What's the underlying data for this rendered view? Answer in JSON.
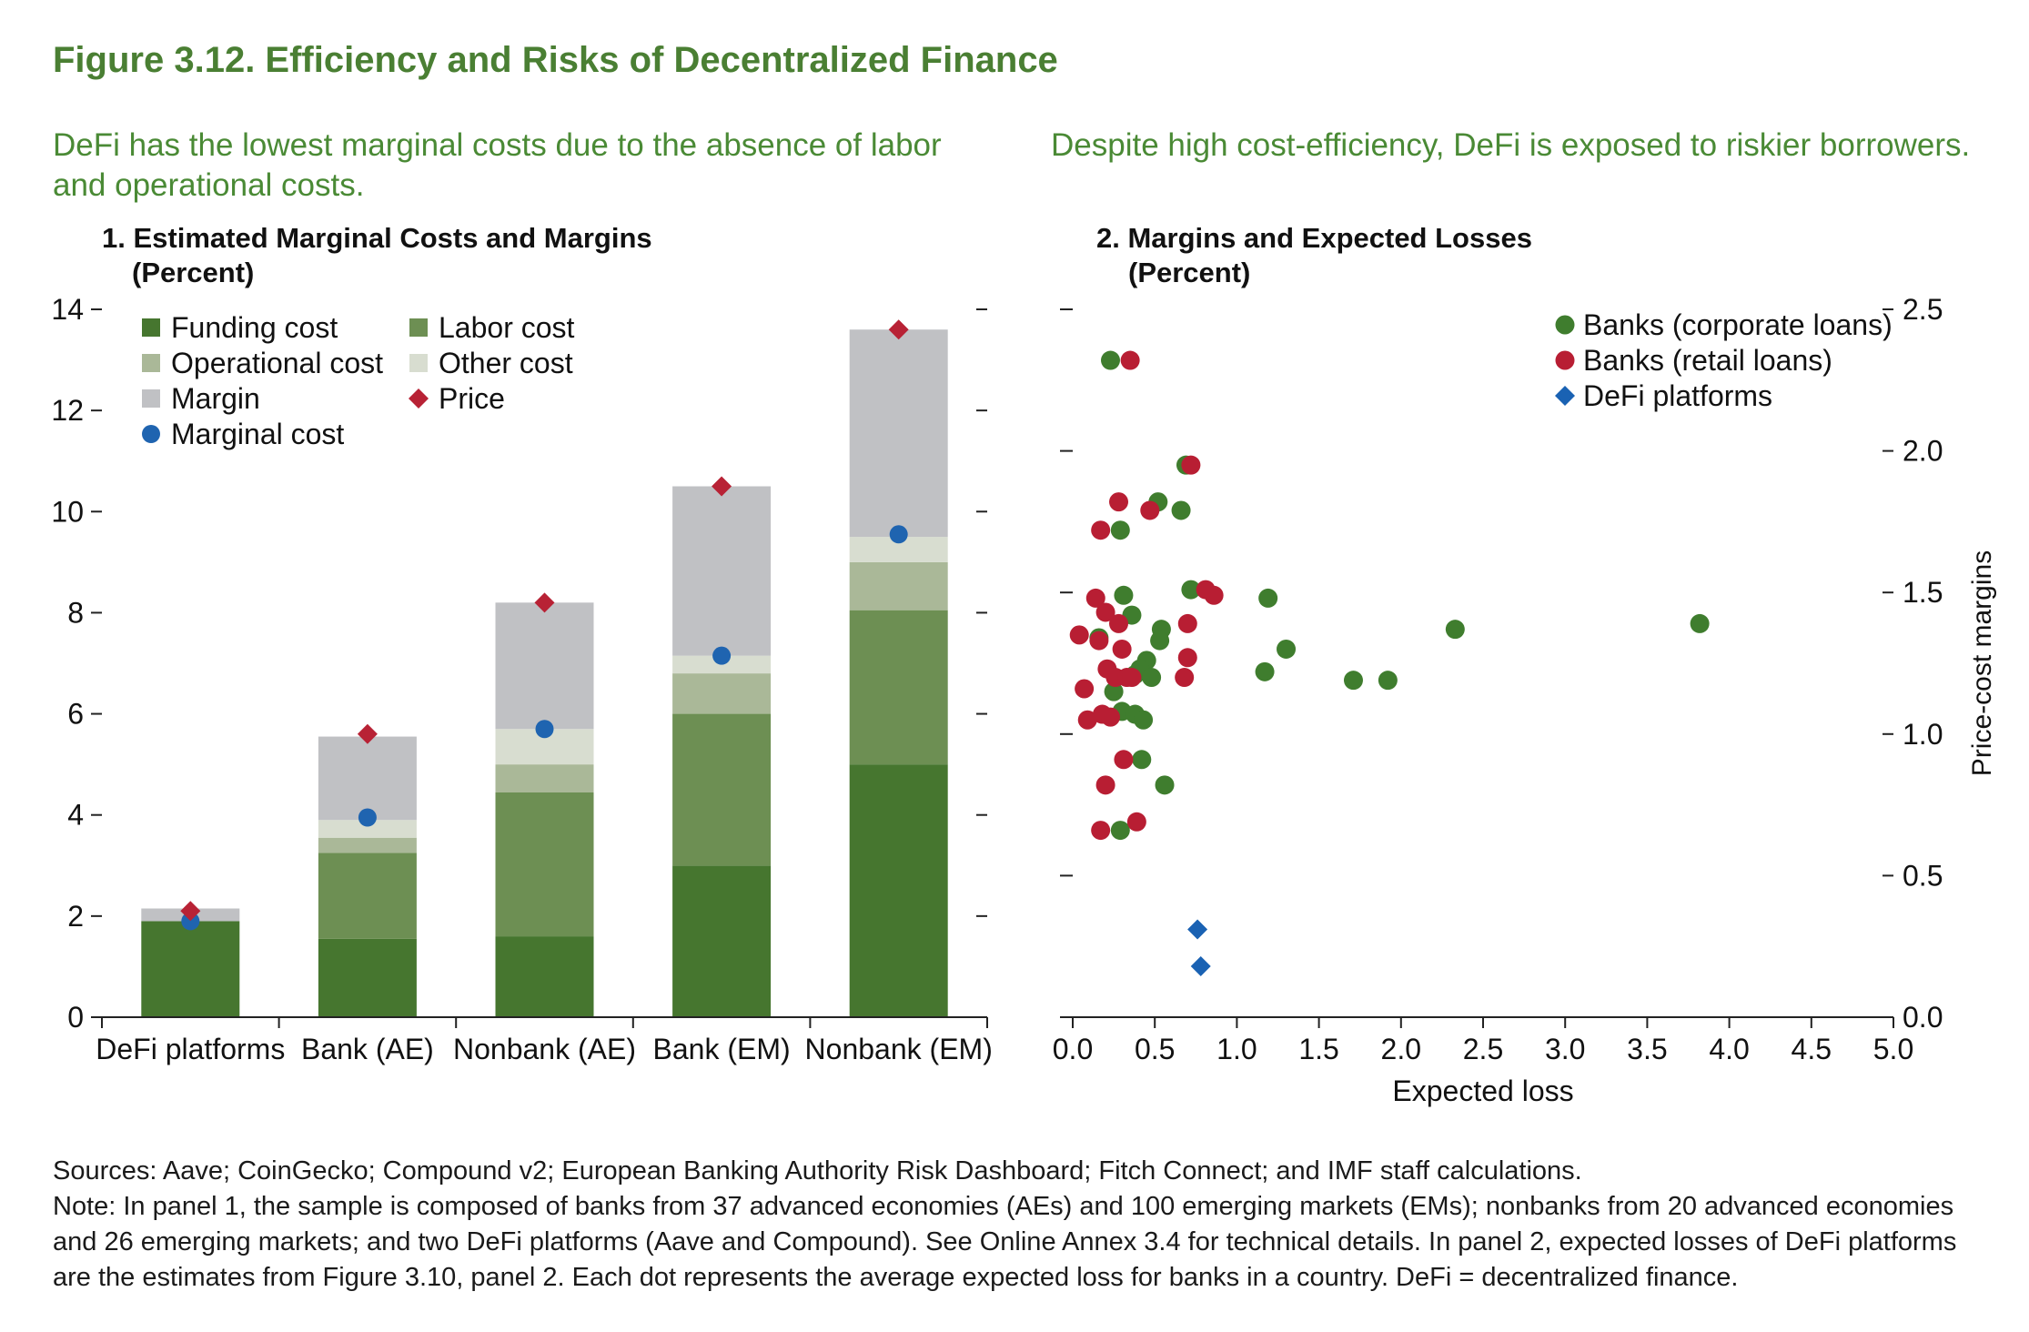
{
  "figure_title": "Figure 3.12. Efficiency and Risks of Decentralized Finance",
  "subtitles": {
    "left": "DeFi has the lowest marginal costs due to the absence of labor and operational costs.",
    "right": "Despite high cost-efficiency, DeFi is exposed to riskier borrowers."
  },
  "panels": {
    "p1_title": "1. Estimated Marginal Costs and Margins",
    "p1_unit": "(Percent)",
    "p2_title": "2. Margins and Expected Losses",
    "p2_unit": "(Percent)"
  },
  "footer": {
    "sources": "Sources: Aave; CoinGecko; Compound v2; European Banking Authority Risk Dashboard; Fitch Connect; and IMF staff calculations.",
    "note": "Note: In panel 1, the sample is composed of banks from 37 advanced economies (AEs) and 100 emerging markets (EMs); nonbanks from 20 advanced economies and 26 emerging markets; and two DeFi platforms (Aave and Compound). See Online Annex 3.4 for technical details. In panel 2, expected losses of DeFi platforms are the estimates from Figure 3.10, panel 2. Each dot represents the average expected loss for banks in a country. DeFi = decentralized finance."
  },
  "colors": {
    "funding": "#46762f",
    "labor": "#6d8f53",
    "operational": "#aab898",
    "other": "#d8ddd0",
    "margin": "#c0c1c4",
    "marginal_cost": "#1f64b0",
    "price": "#b82235",
    "banks_corporate": "#3f7d2e",
    "banks_retail": "#b81e33",
    "defi": "#1a62b3"
  },
  "chart_data": [
    {
      "type": "bar",
      "stacked": true,
      "title": "1. Estimated Marginal Costs and Margins",
      "unit": "(Percent)",
      "categories": [
        "DeFi platforms",
        "Bank (AE)",
        "Nonbank (AE)",
        "Bank (EM)",
        "Nonbank (EM)"
      ],
      "series": [
        {
          "name": "Funding cost",
          "values": [
            1.9,
            1.55,
            1.6,
            3.0,
            5.0
          ]
        },
        {
          "name": "Labor cost",
          "values": [
            0.0,
            1.7,
            2.85,
            3.0,
            3.05
          ]
        },
        {
          "name": "Operational cost",
          "values": [
            0.0,
            0.3,
            0.55,
            0.8,
            0.95
          ]
        },
        {
          "name": "Other cost",
          "values": [
            0.0,
            0.35,
            0.7,
            0.35,
            0.5
          ]
        },
        {
          "name": "Margin",
          "values": [
            0.25,
            1.65,
            2.5,
            3.35,
            4.1
          ]
        }
      ],
      "markers": [
        {
          "name": "Marginal cost",
          "values": [
            1.9,
            3.95,
            5.7,
            7.15,
            9.55
          ]
        },
        {
          "name": "Price",
          "values": [
            2.1,
            5.6,
            8.2,
            10.5,
            13.6
          ]
        }
      ],
      "yticks": [
        "0",
        "2",
        "4",
        "6",
        "8",
        "10",
        "12",
        "14"
      ],
      "ylim": [
        0,
        14
      ],
      "legend": "top-left",
      "grid": false
    },
    {
      "type": "scatter",
      "title": "2. Margins and Expected Losses",
      "unit": "(Percent)",
      "xlabel": "Expected loss",
      "ylabel": "Price-cost margins",
      "xlim": [
        0,
        5
      ],
      "ylim": [
        0,
        2.5
      ],
      "xticks": [
        "0.0",
        "0.5",
        "1.0",
        "1.5",
        "2.0",
        "2.5",
        "3.0",
        "3.5",
        "4.0",
        "4.5",
        "5.0"
      ],
      "yticks": [
        "0.0",
        "0.5",
        "1.0",
        "1.5",
        "2.0",
        "2.5"
      ],
      "legend": "top-right",
      "grid": false,
      "series": [
        {
          "name": "Banks (corporate loans)",
          "marker": "circle",
          "points": [
            [
              0.23,
              2.32
            ],
            [
              0.69,
              1.95
            ],
            [
              0.52,
              1.82
            ],
            [
              0.66,
              1.79
            ],
            [
              0.29,
              1.72
            ],
            [
              0.72,
              1.51
            ],
            [
              1.19,
              1.48
            ],
            [
              0.31,
              1.49
            ],
            [
              0.36,
              1.42
            ],
            [
              0.54,
              1.37
            ],
            [
              0.16,
              1.34
            ],
            [
              0.53,
              1.33
            ],
            [
              2.33,
              1.37
            ],
            [
              3.82,
              1.39
            ],
            [
              1.3,
              1.3
            ],
            [
              0.45,
              1.26
            ],
            [
              0.41,
              1.23
            ],
            [
              1.17,
              1.22
            ],
            [
              0.38,
              1.21
            ],
            [
              0.48,
              1.2
            ],
            [
              1.71,
              1.19
            ],
            [
              1.92,
              1.19
            ],
            [
              0.25,
              1.15
            ],
            [
              0.3,
              1.08
            ],
            [
              0.38,
              1.07
            ],
            [
              0.43,
              1.05
            ],
            [
              0.42,
              0.91
            ],
            [
              0.56,
              0.82
            ],
            [
              0.29,
              0.66
            ]
          ]
        },
        {
          "name": "Banks (retail loans)",
          "marker": "circle",
          "points": [
            [
              0.35,
              2.32
            ],
            [
              0.72,
              1.95
            ],
            [
              0.28,
              1.82
            ],
            [
              0.47,
              1.79
            ],
            [
              0.17,
              1.72
            ],
            [
              0.81,
              1.51
            ],
            [
              0.86,
              1.49
            ],
            [
              0.14,
              1.48
            ],
            [
              0.2,
              1.43
            ],
            [
              0.28,
              1.39
            ],
            [
              0.7,
              1.39
            ],
            [
              0.04,
              1.35
            ],
            [
              0.16,
              1.33
            ],
            [
              0.3,
              1.3
            ],
            [
              0.7,
              1.27
            ],
            [
              0.21,
              1.23
            ],
            [
              0.26,
              1.2
            ],
            [
              0.33,
              1.2
            ],
            [
              0.36,
              1.2
            ],
            [
              0.68,
              1.2
            ],
            [
              0.07,
              1.16
            ],
            [
              0.18,
              1.07
            ],
            [
              0.23,
              1.06
            ],
            [
              0.09,
              1.05
            ],
            [
              0.31,
              0.91
            ],
            [
              0.2,
              0.82
            ],
            [
              0.39,
              0.69
            ],
            [
              0.17,
              0.66
            ]
          ]
        },
        {
          "name": "DeFi platforms",
          "marker": "diamond",
          "points": [
            [
              0.76,
              0.31
            ],
            [
              0.78,
              0.18
            ]
          ]
        }
      ]
    }
  ]
}
